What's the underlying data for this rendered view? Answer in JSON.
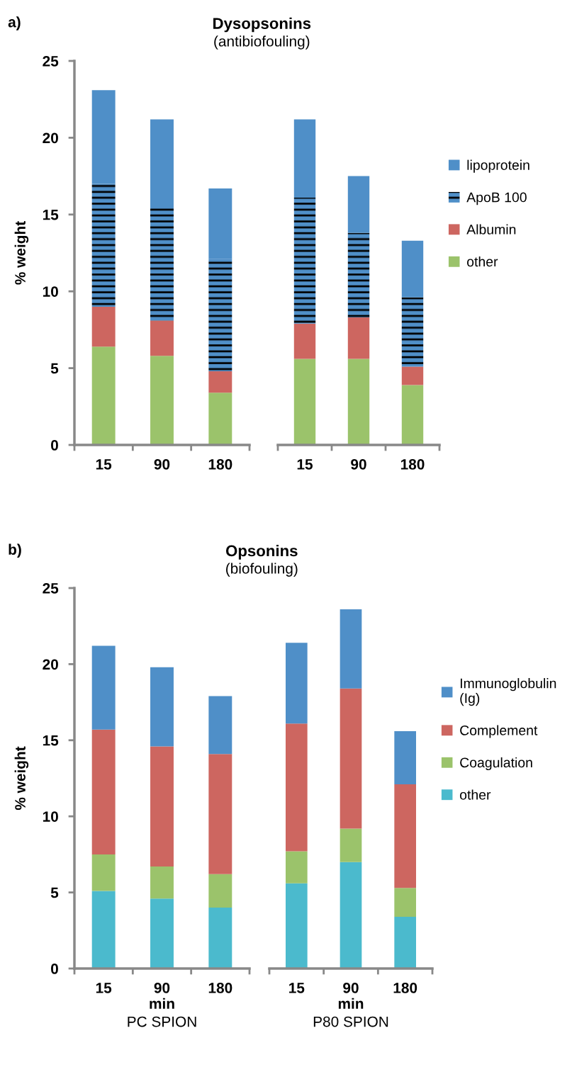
{
  "chart_data": [
    {
      "type": "bar",
      "stacked": true,
      "title": "Dysopsonins",
      "subtitle": "(antibiofouling)",
      "ylabel": "% weight",
      "annotations": [
        "a)"
      ],
      "categories": [
        "15",
        "90",
        "180"
      ],
      "ylim": [
        0,
        25
      ],
      "yticks": [
        0,
        5,
        10,
        15,
        20,
        25
      ],
      "grid": false,
      "legend": false,
      "series": [
        {
          "color": "#9bc36b",
          "values": [
            6.4,
            5.8,
            3.4
          ]
        },
        {
          "color": "#cd6660",
          "values": [
            2.6,
            2.3,
            1.4
          ]
        },
        {
          "color": "#4f8fc8",
          "values": [
            8.0,
            7.4,
            7.3
          ]
        },
        {
          "color": "#4f8fc8",
          "values": [
            6.1,
            5.7,
            4.6
          ]
        }
      ]
    },
    {
      "type": "bar",
      "stacked": true,
      "categories": [
        "15",
        "90",
        "180"
      ],
      "ylim": [
        0,
        25
      ],
      "yticks": [
        0,
        5,
        10,
        15,
        20,
        25
      ],
      "tick_labels": "x",
      "grid": false,
      "legend": "right",
      "series": [
        {
          "name": "other",
          "color": "#9bc36b",
          "values": [
            5.6,
            5.6,
            3.9
          ]
        },
        {
          "name": "Albumin",
          "color": "#cd6660",
          "values": [
            2.3,
            2.7,
            1.2
          ]
        },
        {
          "name": "ApoB 100",
          "color": "#4f8fc8",
          "values": [
            8.2,
            5.5,
            4.5
          ]
        },
        {
          "name": "lipoprotein",
          "color": "#4f8fc8",
          "values": [
            5.1,
            3.7,
            3.7
          ]
        }
      ]
    },
    {
      "type": "bar",
      "stacked": true,
      "title": "Opsonins",
      "subtitle": "(biofouling)",
      "ylabel": "% weight",
      "xlabel": "min",
      "annotations": [
        "b)",
        "PC SPION"
      ],
      "categories": [
        "15",
        "90",
        "180"
      ],
      "ylim": [
        0,
        25
      ],
      "yticks": [
        0,
        5,
        10,
        15,
        20,
        25
      ],
      "grid": false,
      "legend": false,
      "series": [
        {
          "color": "#4bbacd",
          "values": [
            5.1,
            4.6,
            4.0
          ]
        },
        {
          "color": "#9bc36b",
          "values": [
            2.4,
            2.1,
            2.2
          ]
        },
        {
          "color": "#cd6660",
          "values": [
            8.2,
            7.9,
            7.9
          ]
        },
        {
          "color": "#4f8fc8",
          "values": [
            5.5,
            5.2,
            3.8
          ]
        }
      ]
    },
    {
      "type": "bar",
      "stacked": true,
      "xlabel": "min",
      "annotations": [
        "P80 SPION"
      ],
      "categories": [
        "15",
        "90",
        "180"
      ],
      "ylim": [
        0,
        25
      ],
      "yticks": [
        0,
        5,
        10,
        15,
        20,
        25
      ],
      "tick_labels": "x",
      "grid": false,
      "legend": "right",
      "series": [
        {
          "name": "other",
          "color": "#4bbacd",
          "values": [
            5.6,
            7.0,
            3.4
          ]
        },
        {
          "name": "Coagulation",
          "color": "#9bc36b",
          "values": [
            2.1,
            2.2,
            1.9
          ]
        },
        {
          "name": "Complement",
          "color": "#cd6660",
          "values": [
            8.4,
            9.2,
            6.8
          ]
        },
        {
          "name": "Immunoglobulin\n(Ig)",
          "color": "#4f8fc8",
          "values": [
            5.3,
            5.2,
            3.5
          ]
        }
      ]
    }
  ]
}
